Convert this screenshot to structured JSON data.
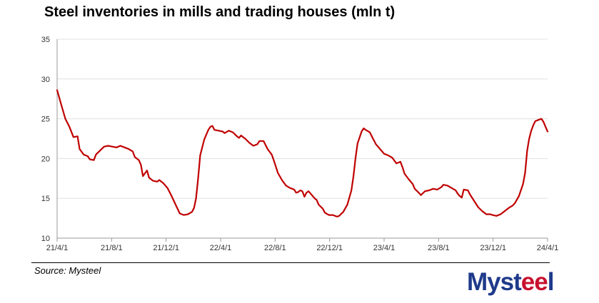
{
  "chart_data": {
    "type": "line",
    "title": "Steel inventories in mills and trading houses (mln t)",
    "xlabel": "",
    "ylabel": "",
    "ylim": [
      10,
      35
    ],
    "yticks": [
      10,
      15,
      20,
      25,
      30,
      35
    ],
    "xticks": [
      "21/4/1",
      "21/8/1",
      "21/12/1",
      "22/4/1",
      "22/8/1",
      "22/12/1",
      "23/4/1",
      "23/8/1",
      "23/12/1",
      "24/4/1"
    ],
    "grid": true,
    "line_color": "#c00000",
    "series": [
      {
        "values": [
          [
            0,
            28.6
          ],
          [
            2,
            26.8
          ],
          [
            4,
            25.0
          ],
          [
            6,
            24.0
          ],
          [
            8,
            22.7
          ],
          [
            10,
            22.8
          ],
          [
            11,
            21.2
          ],
          [
            13,
            20.5
          ],
          [
            15,
            20.3
          ],
          [
            16,
            19.9
          ],
          [
            18,
            19.8
          ],
          [
            19,
            20.5
          ],
          [
            21,
            21.0
          ],
          [
            23,
            21.5
          ],
          [
            25,
            21.6
          ],
          [
            27,
            21.5
          ],
          [
            29,
            21.4
          ],
          [
            31,
            21.6
          ],
          [
            33,
            21.4
          ],
          [
            35,
            21.2
          ],
          [
            37,
            20.9
          ],
          [
            38,
            20.2
          ],
          [
            40,
            19.8
          ],
          [
            41,
            19.2
          ],
          [
            42,
            17.8
          ],
          [
            44,
            18.5
          ],
          [
            45,
            17.6
          ],
          [
            47,
            17.2
          ],
          [
            49,
            17.1
          ],
          [
            50,
            17.3
          ],
          [
            52,
            16.9
          ],
          [
            54,
            16.3
          ],
          [
            56,
            15.3
          ],
          [
            58,
            14.2
          ],
          [
            60,
            13.1
          ],
          [
            62,
            12.9
          ],
          [
            64,
            13.0
          ],
          [
            66,
            13.3
          ],
          [
            67,
            13.8
          ],
          [
            68,
            15.0
          ],
          [
            69,
            17.5
          ],
          [
            70,
            20.4
          ],
          [
            72,
            22.4
          ],
          [
            74,
            23.6
          ],
          [
            75,
            24.0
          ],
          [
            76,
            24.1
          ],
          [
            77,
            23.6
          ],
          [
            79,
            23.5
          ],
          [
            81,
            23.4
          ],
          [
            82,
            23.2
          ],
          [
            84,
            23.5
          ],
          [
            86,
            23.3
          ],
          [
            88,
            22.8
          ],
          [
            89,
            22.6
          ],
          [
            90,
            22.9
          ],
          [
            92,
            22.5
          ],
          [
            94,
            22.0
          ],
          [
            96,
            21.6
          ],
          [
            98,
            21.8
          ],
          [
            99,
            22.2
          ],
          [
            101,
            22.2
          ],
          [
            103,
            21.2
          ],
          [
            105,
            20.5
          ],
          [
            106,
            19.8
          ],
          [
            107,
            19.0
          ],
          [
            108,
            18.2
          ],
          [
            110,
            17.3
          ],
          [
            112,
            16.6
          ],
          [
            114,
            16.3
          ],
          [
            116,
            16.1
          ],
          [
            117,
            15.7
          ],
          [
            118,
            15.8
          ],
          [
            119,
            16.0
          ],
          [
            120,
            15.9
          ],
          [
            121,
            15.2
          ],
          [
            122,
            15.7
          ],
          [
            123,
            15.9
          ],
          [
            124,
            15.6
          ],
          [
            126,
            15.0
          ],
          [
            127,
            14.8
          ],
          [
            128,
            14.2
          ],
          [
            130,
            13.7
          ],
          [
            131,
            13.2
          ],
          [
            133,
            12.9
          ],
          [
            135,
            12.9
          ],
          [
            136,
            12.8
          ],
          [
            137,
            12.7
          ],
          [
            138,
            12.8
          ],
          [
            140,
            13.3
          ],
          [
            142,
            14.2
          ],
          [
            144,
            16.0
          ],
          [
            145,
            17.8
          ],
          [
            146,
            20.0
          ],
          [
            147,
            21.9
          ],
          [
            149,
            23.4
          ],
          [
            150,
            23.8
          ],
          [
            151,
            23.6
          ],
          [
            153,
            23.3
          ],
          [
            154,
            22.8
          ],
          [
            156,
            21.8
          ],
          [
            158,
            21.2
          ],
          [
            160,
            20.6
          ],
          [
            162,
            20.4
          ],
          [
            164,
            20.1
          ],
          [
            166,
            19.4
          ],
          [
            168,
            19.6
          ],
          [
            169,
            18.9
          ],
          [
            170,
            18.1
          ],
          [
            172,
            17.4
          ],
          [
            174,
            16.8
          ],
          [
            175,
            16.2
          ],
          [
            177,
            15.7
          ],
          [
            178,
            15.4
          ],
          [
            180,
            15.9
          ],
          [
            182,
            16.0
          ],
          [
            184,
            16.2
          ],
          [
            186,
            16.1
          ],
          [
            188,
            16.4
          ],
          [
            189,
            16.7
          ],
          [
            191,
            16.6
          ],
          [
            193,
            16.3
          ],
          [
            195,
            16.0
          ],
          [
            196,
            15.6
          ],
          [
            197,
            15.3
          ],
          [
            198,
            15.1
          ],
          [
            199,
            16.1
          ],
          [
            201,
            16.0
          ],
          [
            202,
            15.5
          ],
          [
            204,
            14.7
          ],
          [
            206,
            13.9
          ],
          [
            208,
            13.4
          ],
          [
            210,
            13.0
          ],
          [
            212,
            13.0
          ],
          [
            213,
            12.9
          ],
          [
            215,
            12.8
          ],
          [
            217,
            13.0
          ],
          [
            219,
            13.4
          ],
          [
            221,
            13.8
          ],
          [
            223,
            14.1
          ],
          [
            224,
            14.4
          ],
          [
            226,
            15.3
          ],
          [
            228,
            16.8
          ],
          [
            229,
            18.2
          ],
          [
            230,
            21.0
          ],
          [
            231,
            22.5
          ],
          [
            232,
            23.5
          ],
          [
            233,
            24.2
          ],
          [
            234,
            24.7
          ],
          [
            236,
            24.9
          ],
          [
            237,
            25.0
          ],
          [
            238,
            24.6
          ],
          [
            239,
            24.0
          ],
          [
            240,
            23.4
          ]
        ]
      }
    ]
  },
  "footer": {
    "source": "Source: Mysteel",
    "logo_main": "Myst",
    "logo_accent": "ee",
    "logo_end": "l"
  }
}
